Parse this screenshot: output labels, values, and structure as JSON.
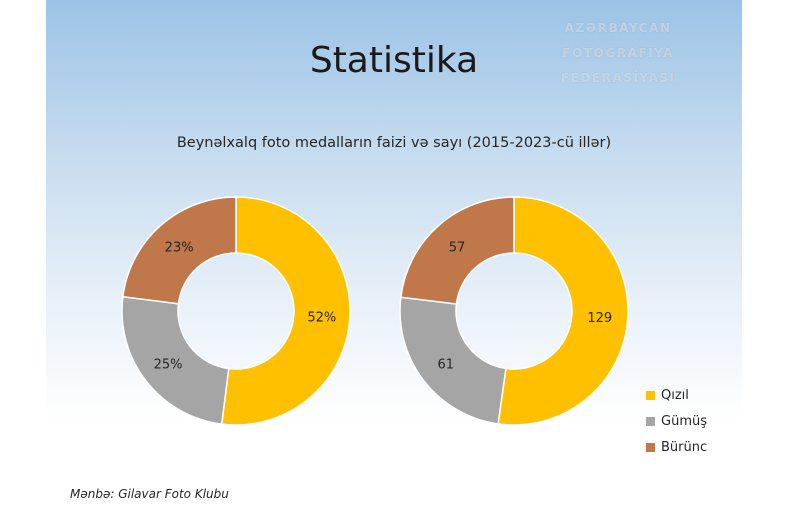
{
  "watermark": {
    "line1": "AZƏRBAYCAN FOTOGRAFİYA",
    "line2": "FEDERASİYASI"
  },
  "title": "Statistika",
  "subtitle": "Beynəlxalq foto medalların faizi və sayı (2015-2023-cü illər)",
  "source": "Mənbə: Gilavar Foto Klubu",
  "chart_data": [
    {
      "type": "pie",
      "variant": "donut",
      "categories": [
        "Qızıl",
        "Gümüş",
        "Bürünc"
      ],
      "values": [
        52,
        25,
        23
      ],
      "labels": [
        "52%",
        "25%",
        "23%"
      ],
      "colors": [
        "#ffc000",
        "#a5a5a5",
        "#c0784a"
      ]
    },
    {
      "type": "pie",
      "variant": "donut",
      "categories": [
        "Qızıl",
        "Gümüş",
        "Bürünc"
      ],
      "values": [
        129,
        61,
        57
      ],
      "labels": [
        "129",
        "61",
        "57"
      ],
      "colors": [
        "#ffc000",
        "#a5a5a5",
        "#c0784a"
      ]
    }
  ],
  "legend": [
    {
      "label": "Qızıl",
      "color": "#ffc000"
    },
    {
      "label": "Gümüş",
      "color": "#a5a5a5"
    },
    {
      "label": "Bürünc",
      "color": "#c0784a"
    }
  ]
}
